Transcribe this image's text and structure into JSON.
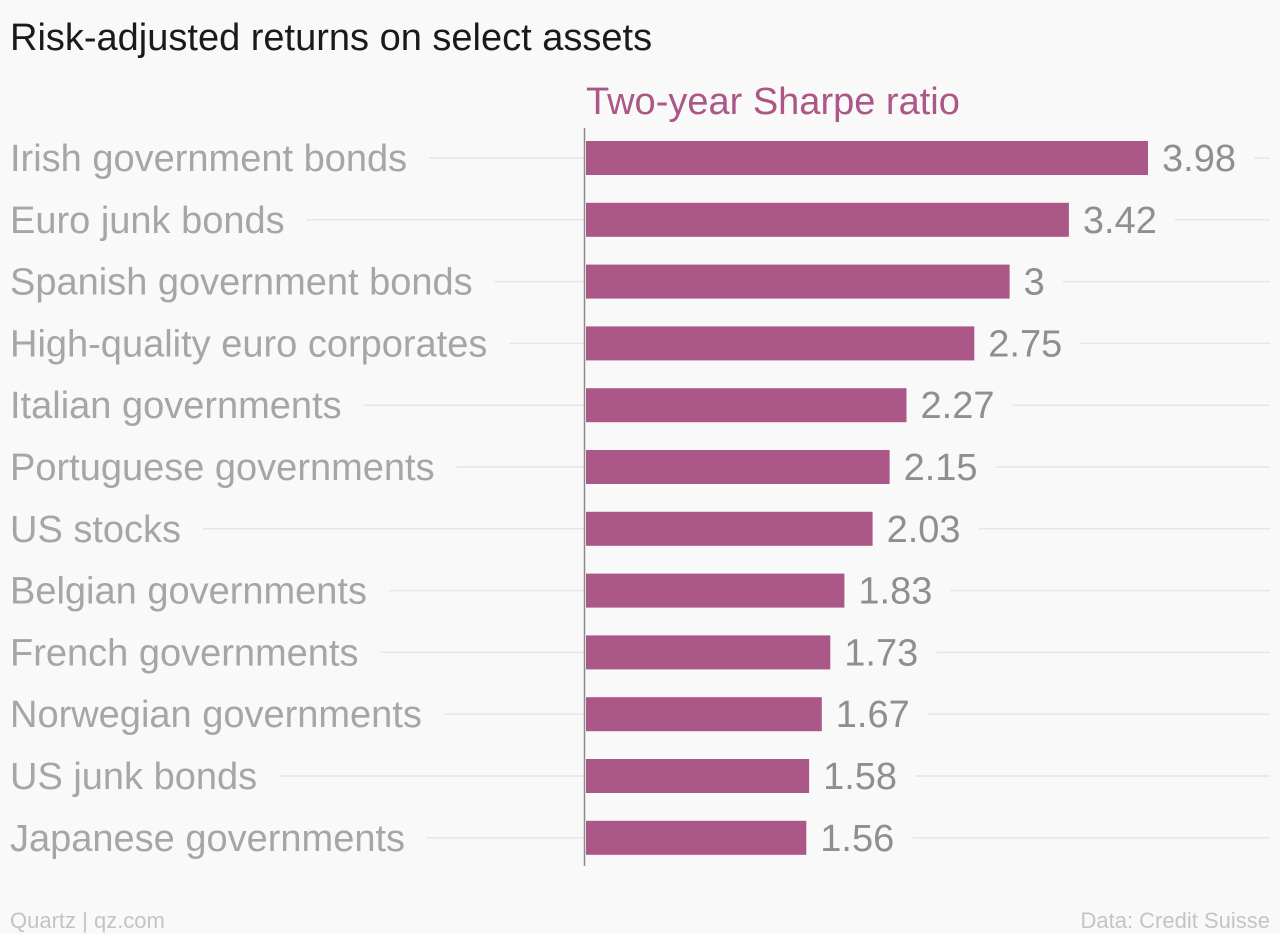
{
  "chart_data": {
    "type": "bar",
    "orientation": "horizontal",
    "title": "Risk-adjusted returns on select assets",
    "categories": [
      "Irish government bonds",
      "Euro junk bonds",
      "Spanish government bonds",
      "High-quality euro corporates",
      "Italian governments",
      "Portuguese governments",
      "US stocks",
      "Belgian governments",
      "French governments",
      "Norwegian governments",
      "US junk bonds",
      "Japanese governments"
    ],
    "series": [
      {
        "name": "Two-year Sharpe ratio",
        "values": [
          3.98,
          3.42,
          3,
          2.75,
          2.27,
          2.15,
          2.03,
          1.83,
          1.73,
          1.67,
          1.58,
          1.56
        ],
        "value_labels": [
          "3.98",
          "3.42",
          "3",
          "2.75",
          "2.27",
          "2.15",
          "2.03",
          "1.83",
          "1.73",
          "1.67",
          "1.58",
          "1.56"
        ]
      }
    ],
    "xlim": [
      0,
      3.98
    ],
    "grid": true,
    "legend": "none",
    "colors": {
      "bar": "#ab5787",
      "series_title": "#ab5787"
    }
  },
  "footer": {
    "credit": "Quartz | qz.com",
    "source": "Data: Credit Suisse"
  }
}
